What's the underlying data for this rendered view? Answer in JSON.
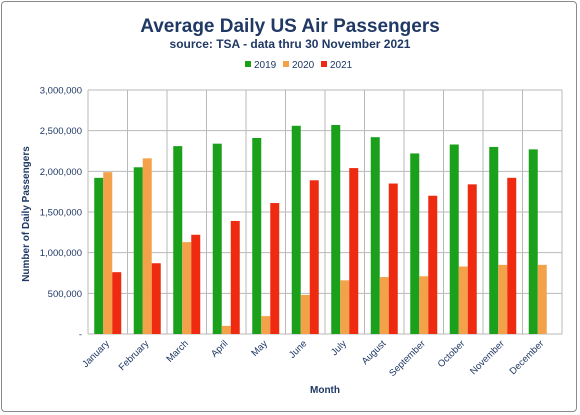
{
  "chart_data": {
    "type": "bar",
    "title": "Average Daily US Air Passengers",
    "subtitle": "source: TSA - data thru 30 November 2021",
    "xlabel": "Month",
    "ylabel": "Number of Daily Passengers",
    "ylim": [
      0,
      3000000
    ],
    "yticks": [
      0,
      500000,
      1000000,
      1500000,
      2000000,
      2500000,
      3000000
    ],
    "ytick_labels": [
      "-",
      "500,000",
      "1,000,000",
      "1,500,000",
      "2,000,000",
      "2,500,000",
      "3,000,000"
    ],
    "grid": true,
    "legend_position": "top",
    "categories": [
      "January",
      "February",
      "March",
      "April",
      "May",
      "June",
      "July",
      "August",
      "September",
      "October",
      "November",
      "December"
    ],
    "series": [
      {
        "name": "2019",
        "color": "#1aa01a",
        "values": [
          1920000,
          2050000,
          2310000,
          2340000,
          2410000,
          2560000,
          2570000,
          2420000,
          2220000,
          2330000,
          2300000,
          2270000
        ]
      },
      {
        "name": "2020",
        "color": "#f4a24a",
        "values": [
          1990000,
          2160000,
          1130000,
          100000,
          220000,
          480000,
          660000,
          700000,
          710000,
          830000,
          850000,
          850000
        ]
      },
      {
        "name": "2021",
        "color": "#ee2a10",
        "values": [
          760000,
          870000,
          1220000,
          1390000,
          1610000,
          1890000,
          2040000,
          1850000,
          1700000,
          1840000,
          1920000,
          null
        ]
      }
    ]
  }
}
